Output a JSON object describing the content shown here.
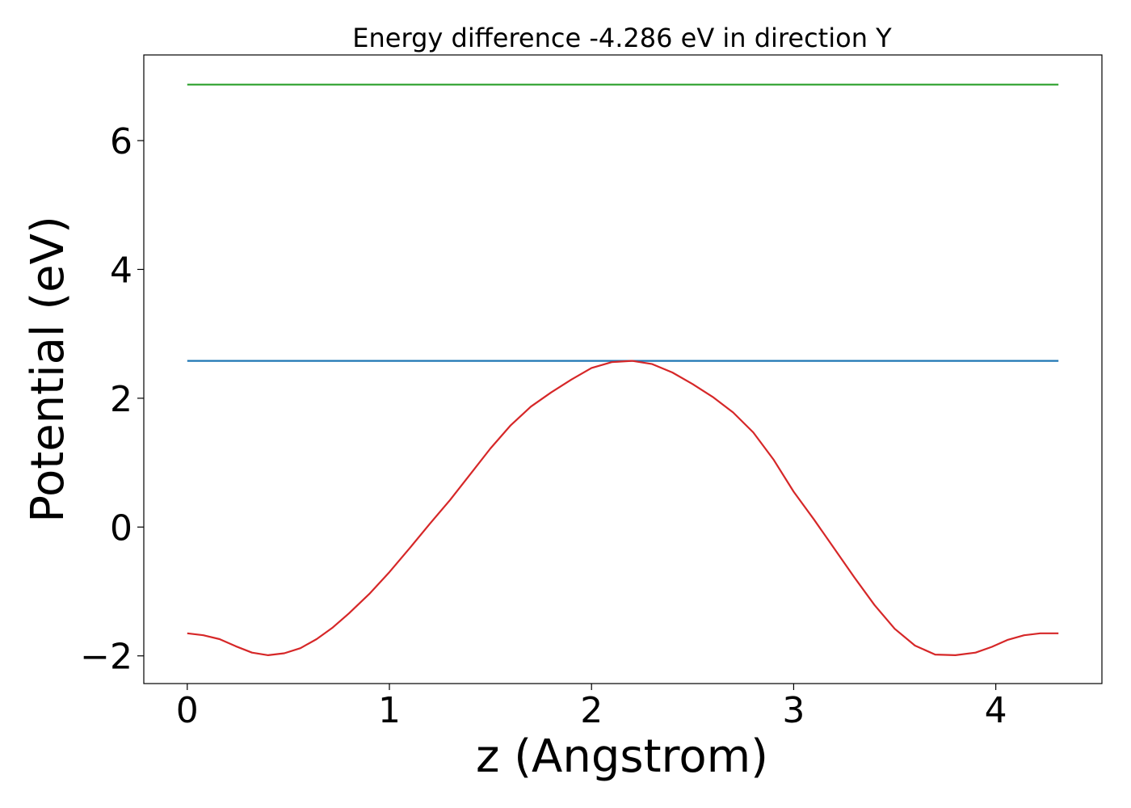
{
  "chart_data": {
    "type": "line",
    "title": "Energy difference -4.286 eV in direction Y",
    "xlabel": "z (Angstrom)",
    "ylabel": "Potential (eV)",
    "xlim": [
      -0.215,
      4.525
    ],
    "ylim": [
      -2.43,
      7.33
    ],
    "grid": false,
    "xticks": [
      0,
      1,
      2,
      3,
      4
    ],
    "xtick_labels": [
      "0",
      "1",
      "2",
      "3",
      "4"
    ],
    "yticks": [
      -2,
      0,
      2,
      4,
      6
    ],
    "ytick_labels": [
      "−2",
      "0",
      "2",
      "4",
      "6"
    ],
    "series": [
      {
        "color": "#1f77b4",
        "x": [
          0,
          4.31
        ],
        "y": [
          2.58,
          2.58
        ]
      },
      {
        "color": "#2ca02c",
        "x": [
          0,
          4.31
        ],
        "y": [
          6.87,
          6.87
        ]
      },
      {
        "color": "#d62728",
        "x": [
          0,
          0.08,
          0.16,
          0.24,
          0.32,
          0.4,
          0.48,
          0.56,
          0.64,
          0.72,
          0.8,
          0.9,
          1.0,
          1.1,
          1.2,
          1.3,
          1.4,
          1.5,
          1.6,
          1.7,
          1.8,
          1.9,
          2.0,
          2.1,
          2.2,
          2.3,
          2.4,
          2.5,
          2.6,
          2.7,
          2.8,
          2.9,
          3.0,
          3.1,
          3.2,
          3.3,
          3.4,
          3.5,
          3.6,
          3.7,
          3.8,
          3.9,
          3.98,
          4.06,
          4.14,
          4.22,
          4.31
        ],
        "y": [
          -1.65,
          -1.68,
          -1.74,
          -1.85,
          -1.95,
          -1.99,
          -1.96,
          -1.88,
          -1.74,
          -1.56,
          -1.34,
          -1.04,
          -0.7,
          -0.33,
          0.05,
          0.42,
          0.82,
          1.22,
          1.58,
          1.87,
          2.09,
          2.29,
          2.47,
          2.56,
          2.58,
          2.53,
          2.4,
          2.22,
          2.02,
          1.78,
          1.47,
          1.05,
          0.55,
          0.12,
          -0.33,
          -0.78,
          -1.21,
          -1.58,
          -1.84,
          -1.98,
          -1.99,
          -1.95,
          -1.86,
          -1.75,
          -1.68,
          -1.65,
          -1.65
        ]
      }
    ]
  }
}
